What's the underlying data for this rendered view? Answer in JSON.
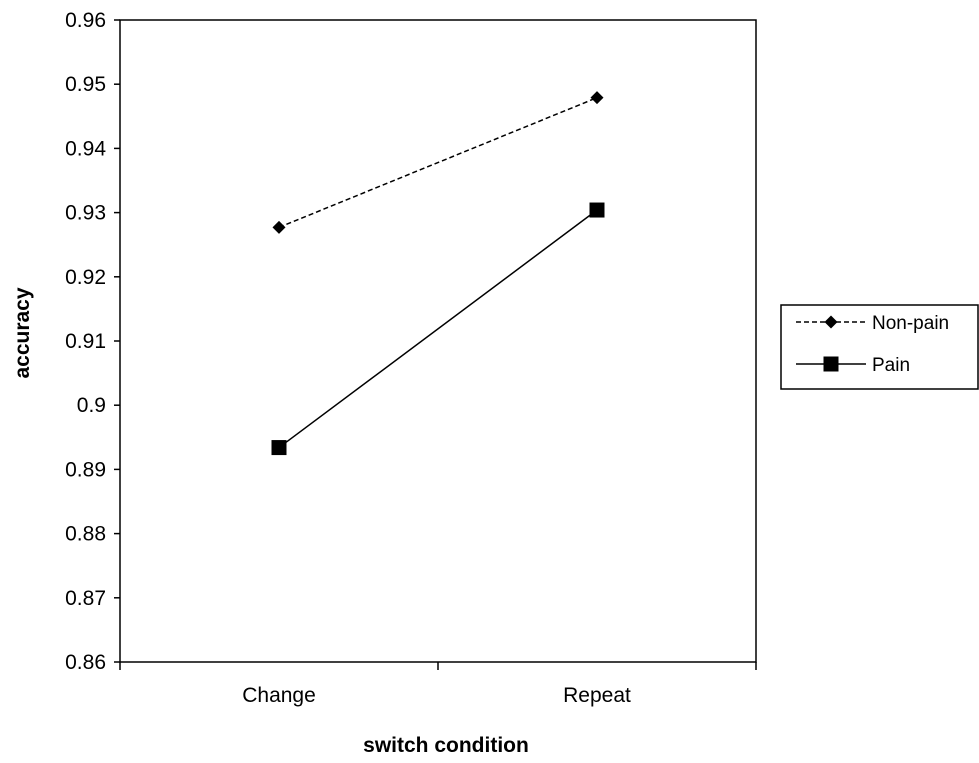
{
  "chart_data": {
    "type": "line",
    "title": "",
    "xlabel": "switch condition",
    "ylabel": "accuracy",
    "categories": [
      "Change",
      "Repeat"
    ],
    "ylim": [
      0.86,
      0.96
    ],
    "yticks": [
      "0.86",
      "0.87",
      "0.88",
      "0.89",
      "0.9",
      "0.91",
      "0.92",
      "0.93",
      "0.94",
      "0.95",
      "0.96"
    ],
    "grid": false,
    "legend_position": "right",
    "series": [
      {
        "name": "Non-pain",
        "values": [
          0.9277,
          0.9479
        ],
        "marker": "diamond",
        "line_style": "dashed",
        "color": "#000000"
      },
      {
        "name": "Pain",
        "values": [
          0.8934,
          0.9304
        ],
        "marker": "square",
        "line_style": "solid",
        "color": "#000000"
      }
    ]
  }
}
